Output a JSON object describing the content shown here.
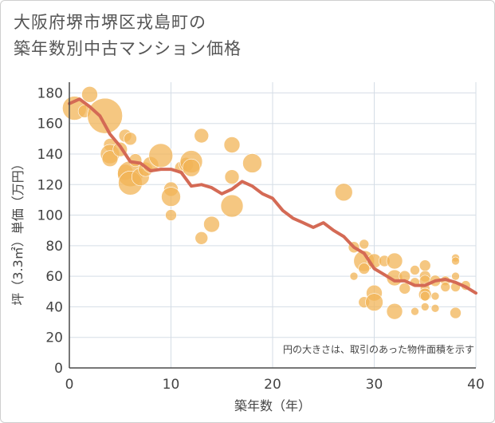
{
  "chart_data": {
    "type": "scatter",
    "title": [
      "大阪府堺市堺区戎島町の",
      "築年数別中古マンション価格"
    ],
    "xlabel": "築年数（年）",
    "ylabel": "坪（3.3㎡）単価（万円）",
    "xlim": [
      0,
      40
    ],
    "ylim": [
      0,
      187
    ],
    "x_ticks": [
      0,
      10,
      20,
      30,
      40
    ],
    "y_ticks": [
      0,
      20,
      40,
      60,
      80,
      100,
      120,
      140,
      160,
      180
    ],
    "grid": true,
    "note": "円の大きさは、取引のあった物件面積を示す",
    "colors": {
      "bubble": "#f2b457",
      "line": "#d46a55",
      "grid": "#d5dde6",
      "axis": "#4a4a4a"
    },
    "bubbles": [
      {
        "x": 0.5,
        "y": 170,
        "size": 15
      },
      {
        "x": 1.5,
        "y": 168,
        "size": 8
      },
      {
        "x": 2,
        "y": 179,
        "size": 10
      },
      {
        "x": 3.5,
        "y": 165,
        "size": 22
      },
      {
        "x": 4,
        "y": 146,
        "size": 8
      },
      {
        "x": 4,
        "y": 140,
        "size": 12
      },
      {
        "x": 4,
        "y": 137,
        "size": 10
      },
      {
        "x": 5,
        "y": 143,
        "size": 9
      },
      {
        "x": 5.5,
        "y": 152,
        "size": 8
      },
      {
        "x": 5.5,
        "y": 128,
        "size": 10
      },
      {
        "x": 6,
        "y": 150,
        "size": 8
      },
      {
        "x": 6,
        "y": 127,
        "size": 16
      },
      {
        "x": 6,
        "y": 121,
        "size": 15
      },
      {
        "x": 6.5,
        "y": 136,
        "size": 8
      },
      {
        "x": 7,
        "y": 125,
        "size": 11
      },
      {
        "x": 7.5,
        "y": 130,
        "size": 9
      },
      {
        "x": 8,
        "y": 133,
        "size": 10
      },
      {
        "x": 9,
        "y": 139,
        "size": 15
      },
      {
        "x": 10,
        "y": 117,
        "size": 9
      },
      {
        "x": 10,
        "y": 112,
        "size": 12
      },
      {
        "x": 10,
        "y": 100,
        "size": 7
      },
      {
        "x": 11,
        "y": 131,
        "size": 8
      },
      {
        "x": 11.5,
        "y": 133,
        "size": 9
      },
      {
        "x": 12,
        "y": 135,
        "size": 14
      },
      {
        "x": 12,
        "y": 131,
        "size": 11
      },
      {
        "x": 13,
        "y": 152,
        "size": 9
      },
      {
        "x": 13,
        "y": 85,
        "size": 8
      },
      {
        "x": 14,
        "y": 94,
        "size": 10
      },
      {
        "x": 16,
        "y": 146,
        "size": 10
      },
      {
        "x": 16,
        "y": 125,
        "size": 9
      },
      {
        "x": 16,
        "y": 106,
        "size": 14
      },
      {
        "x": 18,
        "y": 134,
        "size": 12
      },
      {
        "x": 27,
        "y": 115,
        "size": 11
      },
      {
        "x": 28,
        "y": 79,
        "size": 7
      },
      {
        "x": 28,
        "y": 60,
        "size": 5
      },
      {
        "x": 29,
        "y": 81,
        "size": 6
      },
      {
        "x": 29,
        "y": 70,
        "size": 13
      },
      {
        "x": 29,
        "y": 65,
        "size": 7
      },
      {
        "x": 29,
        "y": 43,
        "size": 7
      },
      {
        "x": 30,
        "y": 70,
        "size": 9
      },
      {
        "x": 30,
        "y": 49,
        "size": 10
      },
      {
        "x": 30,
        "y": 43,
        "size": 11
      },
      {
        "x": 31,
        "y": 70,
        "size": 7
      },
      {
        "x": 32,
        "y": 70,
        "size": 10
      },
      {
        "x": 32,
        "y": 59,
        "size": 10
      },
      {
        "x": 32,
        "y": 37,
        "size": 10
      },
      {
        "x": 33,
        "y": 60,
        "size": 7
      },
      {
        "x": 33,
        "y": 52,
        "size": 7
      },
      {
        "x": 34,
        "y": 64,
        "size": 6
      },
      {
        "x": 34,
        "y": 56,
        "size": 6
      },
      {
        "x": 34,
        "y": 37,
        "size": 5
      },
      {
        "x": 35,
        "y": 67,
        "size": 7
      },
      {
        "x": 35,
        "y": 60,
        "size": 7
      },
      {
        "x": 35,
        "y": 57,
        "size": 7
      },
      {
        "x": 35,
        "y": 52,
        "size": 6
      },
      {
        "x": 35,
        "y": 48,
        "size": 8
      },
      {
        "x": 35,
        "y": 47,
        "size": 6
      },
      {
        "x": 35,
        "y": 40,
        "size": 5
      },
      {
        "x": 36,
        "y": 57,
        "size": 7
      },
      {
        "x": 36,
        "y": 47,
        "size": 5
      },
      {
        "x": 36,
        "y": 39,
        "size": 5
      },
      {
        "x": 37,
        "y": 57,
        "size": 6
      },
      {
        "x": 37,
        "y": 53,
        "size": 6
      },
      {
        "x": 38,
        "y": 72,
        "size": 5
      },
      {
        "x": 38,
        "y": 70,
        "size": 5
      },
      {
        "x": 38,
        "y": 60,
        "size": 5
      },
      {
        "x": 38,
        "y": 53,
        "size": 6
      },
      {
        "x": 38,
        "y": 36,
        "size": 7
      },
      {
        "x": 39,
        "y": 54,
        "size": 6
      }
    ],
    "trend_line": [
      {
        "x": 0,
        "y": 173
      },
      {
        "x": 1,
        "y": 176
      },
      {
        "x": 2,
        "y": 171
      },
      {
        "x": 3,
        "y": 165
      },
      {
        "x": 4,
        "y": 153
      },
      {
        "x": 5,
        "y": 145
      },
      {
        "x": 6,
        "y": 135
      },
      {
        "x": 7,
        "y": 134
      },
      {
        "x": 8,
        "y": 129
      },
      {
        "x": 9,
        "y": 130
      },
      {
        "x": 10,
        "y": 130
      },
      {
        "x": 11,
        "y": 128
      },
      {
        "x": 12,
        "y": 119
      },
      {
        "x": 13,
        "y": 120
      },
      {
        "x": 14,
        "y": 118
      },
      {
        "x": 15,
        "y": 114
      },
      {
        "x": 16,
        "y": 117
      },
      {
        "x": 17,
        "y": 122
      },
      {
        "x": 18,
        "y": 119
      },
      {
        "x": 19,
        "y": 114
      },
      {
        "x": 20,
        "y": 111
      },
      {
        "x": 21,
        "y": 103
      },
      {
        "x": 22,
        "y": 98
      },
      {
        "x": 23,
        "y": 95
      },
      {
        "x": 24,
        "y": 92
      },
      {
        "x": 25,
        "y": 95
      },
      {
        "x": 26,
        "y": 90
      },
      {
        "x": 27,
        "y": 86
      },
      {
        "x": 28,
        "y": 79
      },
      {
        "x": 29,
        "y": 75
      },
      {
        "x": 30,
        "y": 65
      },
      {
        "x": 31,
        "y": 61
      },
      {
        "x": 32,
        "y": 57
      },
      {
        "x": 33,
        "y": 57
      },
      {
        "x": 34,
        "y": 54
      },
      {
        "x": 35,
        "y": 54
      },
      {
        "x": 36,
        "y": 57
      },
      {
        "x": 37,
        "y": 58
      },
      {
        "x": 38,
        "y": 56
      },
      {
        "x": 39,
        "y": 53
      },
      {
        "x": 40,
        "y": 49
      }
    ]
  }
}
